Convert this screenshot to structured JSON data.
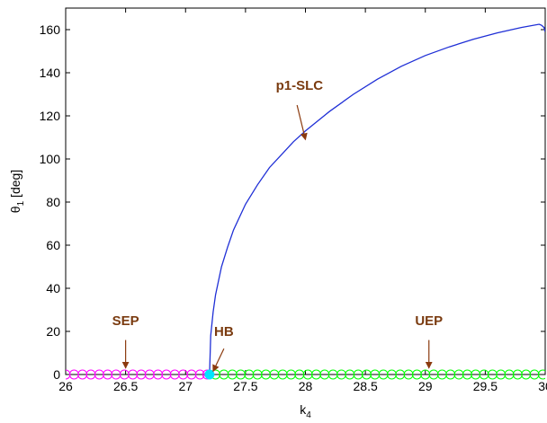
{
  "chart_data": {
    "type": "line",
    "xlabel": "k",
    "xlabel_sub": "4",
    "ylabel": "θ",
    "ylabel_sub": "1",
    "ylabel_unit": " [deg]",
    "xlim": [
      26,
      30
    ],
    "ylim": [
      0,
      170
    ],
    "x_ticks": [
      26,
      26.5,
      27,
      27.5,
      28,
      28.5,
      29,
      29.5,
      30
    ],
    "x_tick_labels": [
      "26",
      "26.5",
      "27",
      "27.5",
      "28",
      "28.5",
      "29",
      "29.5",
      "30"
    ],
    "y_ticks": [
      0,
      20,
      40,
      60,
      80,
      100,
      120,
      140,
      160
    ],
    "y_tick_labels": [
      "0",
      "20",
      "40",
      "60",
      "80",
      "100",
      "120",
      "140",
      "160"
    ],
    "grid": false,
    "series": [
      {
        "name": "p1-SLC",
        "kind": "line",
        "color": "#1f2fd6",
        "x": [
          27.2,
          27.21,
          27.23,
          27.25,
          27.3,
          27.35,
          27.4,
          27.5,
          27.6,
          27.7,
          27.8,
          27.9,
          28.0,
          28.2,
          28.4,
          28.6,
          28.8,
          29.0,
          29.2,
          29.4,
          29.6,
          29.8,
          29.95,
          29.97,
          29.99,
          30.0
        ],
        "y": [
          0,
          18,
          29,
          37,
          50,
          59,
          67,
          79,
          88,
          96,
          102,
          108,
          113,
          122,
          130,
          137,
          143,
          148,
          152,
          155.5,
          158.5,
          161,
          162.5,
          162,
          161,
          159
        ]
      },
      {
        "name": "SEP",
        "kind": "markers",
        "color": "#ff00ff",
        "x": [
          26.0,
          26.07,
          26.14,
          26.21,
          26.28,
          26.35,
          26.42,
          26.49,
          26.56,
          26.63,
          26.7,
          26.77,
          26.84,
          26.91,
          26.98,
          27.05,
          27.12,
          27.18
        ],
        "y": [
          0,
          0,
          0,
          0,
          0,
          0,
          0,
          0,
          0,
          0,
          0,
          0,
          0,
          0,
          0,
          0,
          0,
          0
        ]
      },
      {
        "name": "UEP",
        "kind": "markers",
        "color": "#00ff00",
        "x": [
          27.25,
          27.32,
          27.39,
          27.46,
          27.53,
          27.6,
          27.67,
          27.74,
          27.81,
          27.88,
          27.95,
          28.02,
          28.09,
          28.16,
          28.23,
          28.3,
          28.37,
          28.44,
          28.51,
          28.58,
          28.65,
          28.72,
          28.79,
          28.86,
          28.93,
          29.0,
          29.07,
          29.14,
          29.21,
          29.28,
          29.35,
          29.42,
          29.49,
          29.56,
          29.63,
          29.7,
          29.77,
          29.84,
          29.91,
          29.98
        ],
        "y": [
          0,
          0,
          0,
          0,
          0,
          0,
          0,
          0,
          0,
          0,
          0,
          0,
          0,
          0,
          0,
          0,
          0,
          0,
          0,
          0,
          0,
          0,
          0,
          0,
          0,
          0,
          0,
          0,
          0,
          0,
          0,
          0,
          0,
          0,
          0,
          0,
          0,
          0,
          0,
          0
        ]
      },
      {
        "name": "HB",
        "kind": "point",
        "color": "#00e5ff",
        "x": [
          27.2
        ],
        "y": [
          0
        ]
      }
    ],
    "annotations": [
      {
        "text": "p1-SLC",
        "label_x": 27.95,
        "label_y": 132,
        "arrow_from": [
          27.93,
          125
        ],
        "arrow_to": [
          28.0,
          109
        ],
        "color": "#8b3a0e"
      },
      {
        "text": "SEP",
        "label_x": 26.5,
        "label_y": 23,
        "arrow_from": [
          26.5,
          16
        ],
        "arrow_to": [
          26.5,
          3
        ],
        "color": "#8b3a0e"
      },
      {
        "text": "HB",
        "label_x": 27.32,
        "label_y": 18,
        "arrow_from": [
          27.32,
          12
        ],
        "arrow_to": [
          27.23,
          1.5
        ],
        "color": "#8b3a0e"
      },
      {
        "text": "UEP",
        "label_x": 29.03,
        "label_y": 23,
        "arrow_from": [
          29.03,
          16
        ],
        "arrow_to": [
          29.03,
          3
        ],
        "color": "#8b3a0e"
      }
    ]
  }
}
